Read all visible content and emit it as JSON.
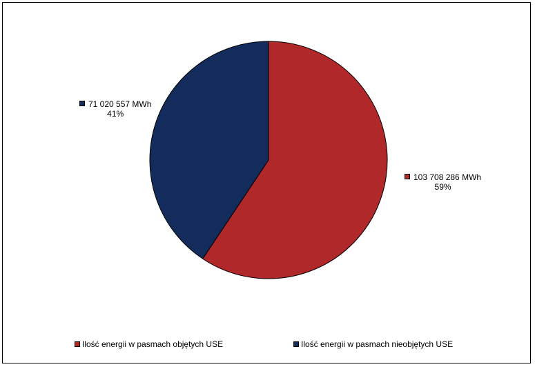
{
  "chart_data": {
    "type": "pie",
    "title": "",
    "slices": [
      {
        "name": "Ilość energii w pasmach objętych USE",
        "value_label": "103 708 286 MWh",
        "percent_label": "59%",
        "value": 103708286,
        "color": "#B0282A"
      },
      {
        "name": "Ilość energii w pasmach nieobjętych USE",
        "value_label": "71 020 557 MWh",
        "percent_label": "41%",
        "value": 71020557,
        "color": "#132C5C"
      }
    ],
    "legend_position": "bottom"
  }
}
